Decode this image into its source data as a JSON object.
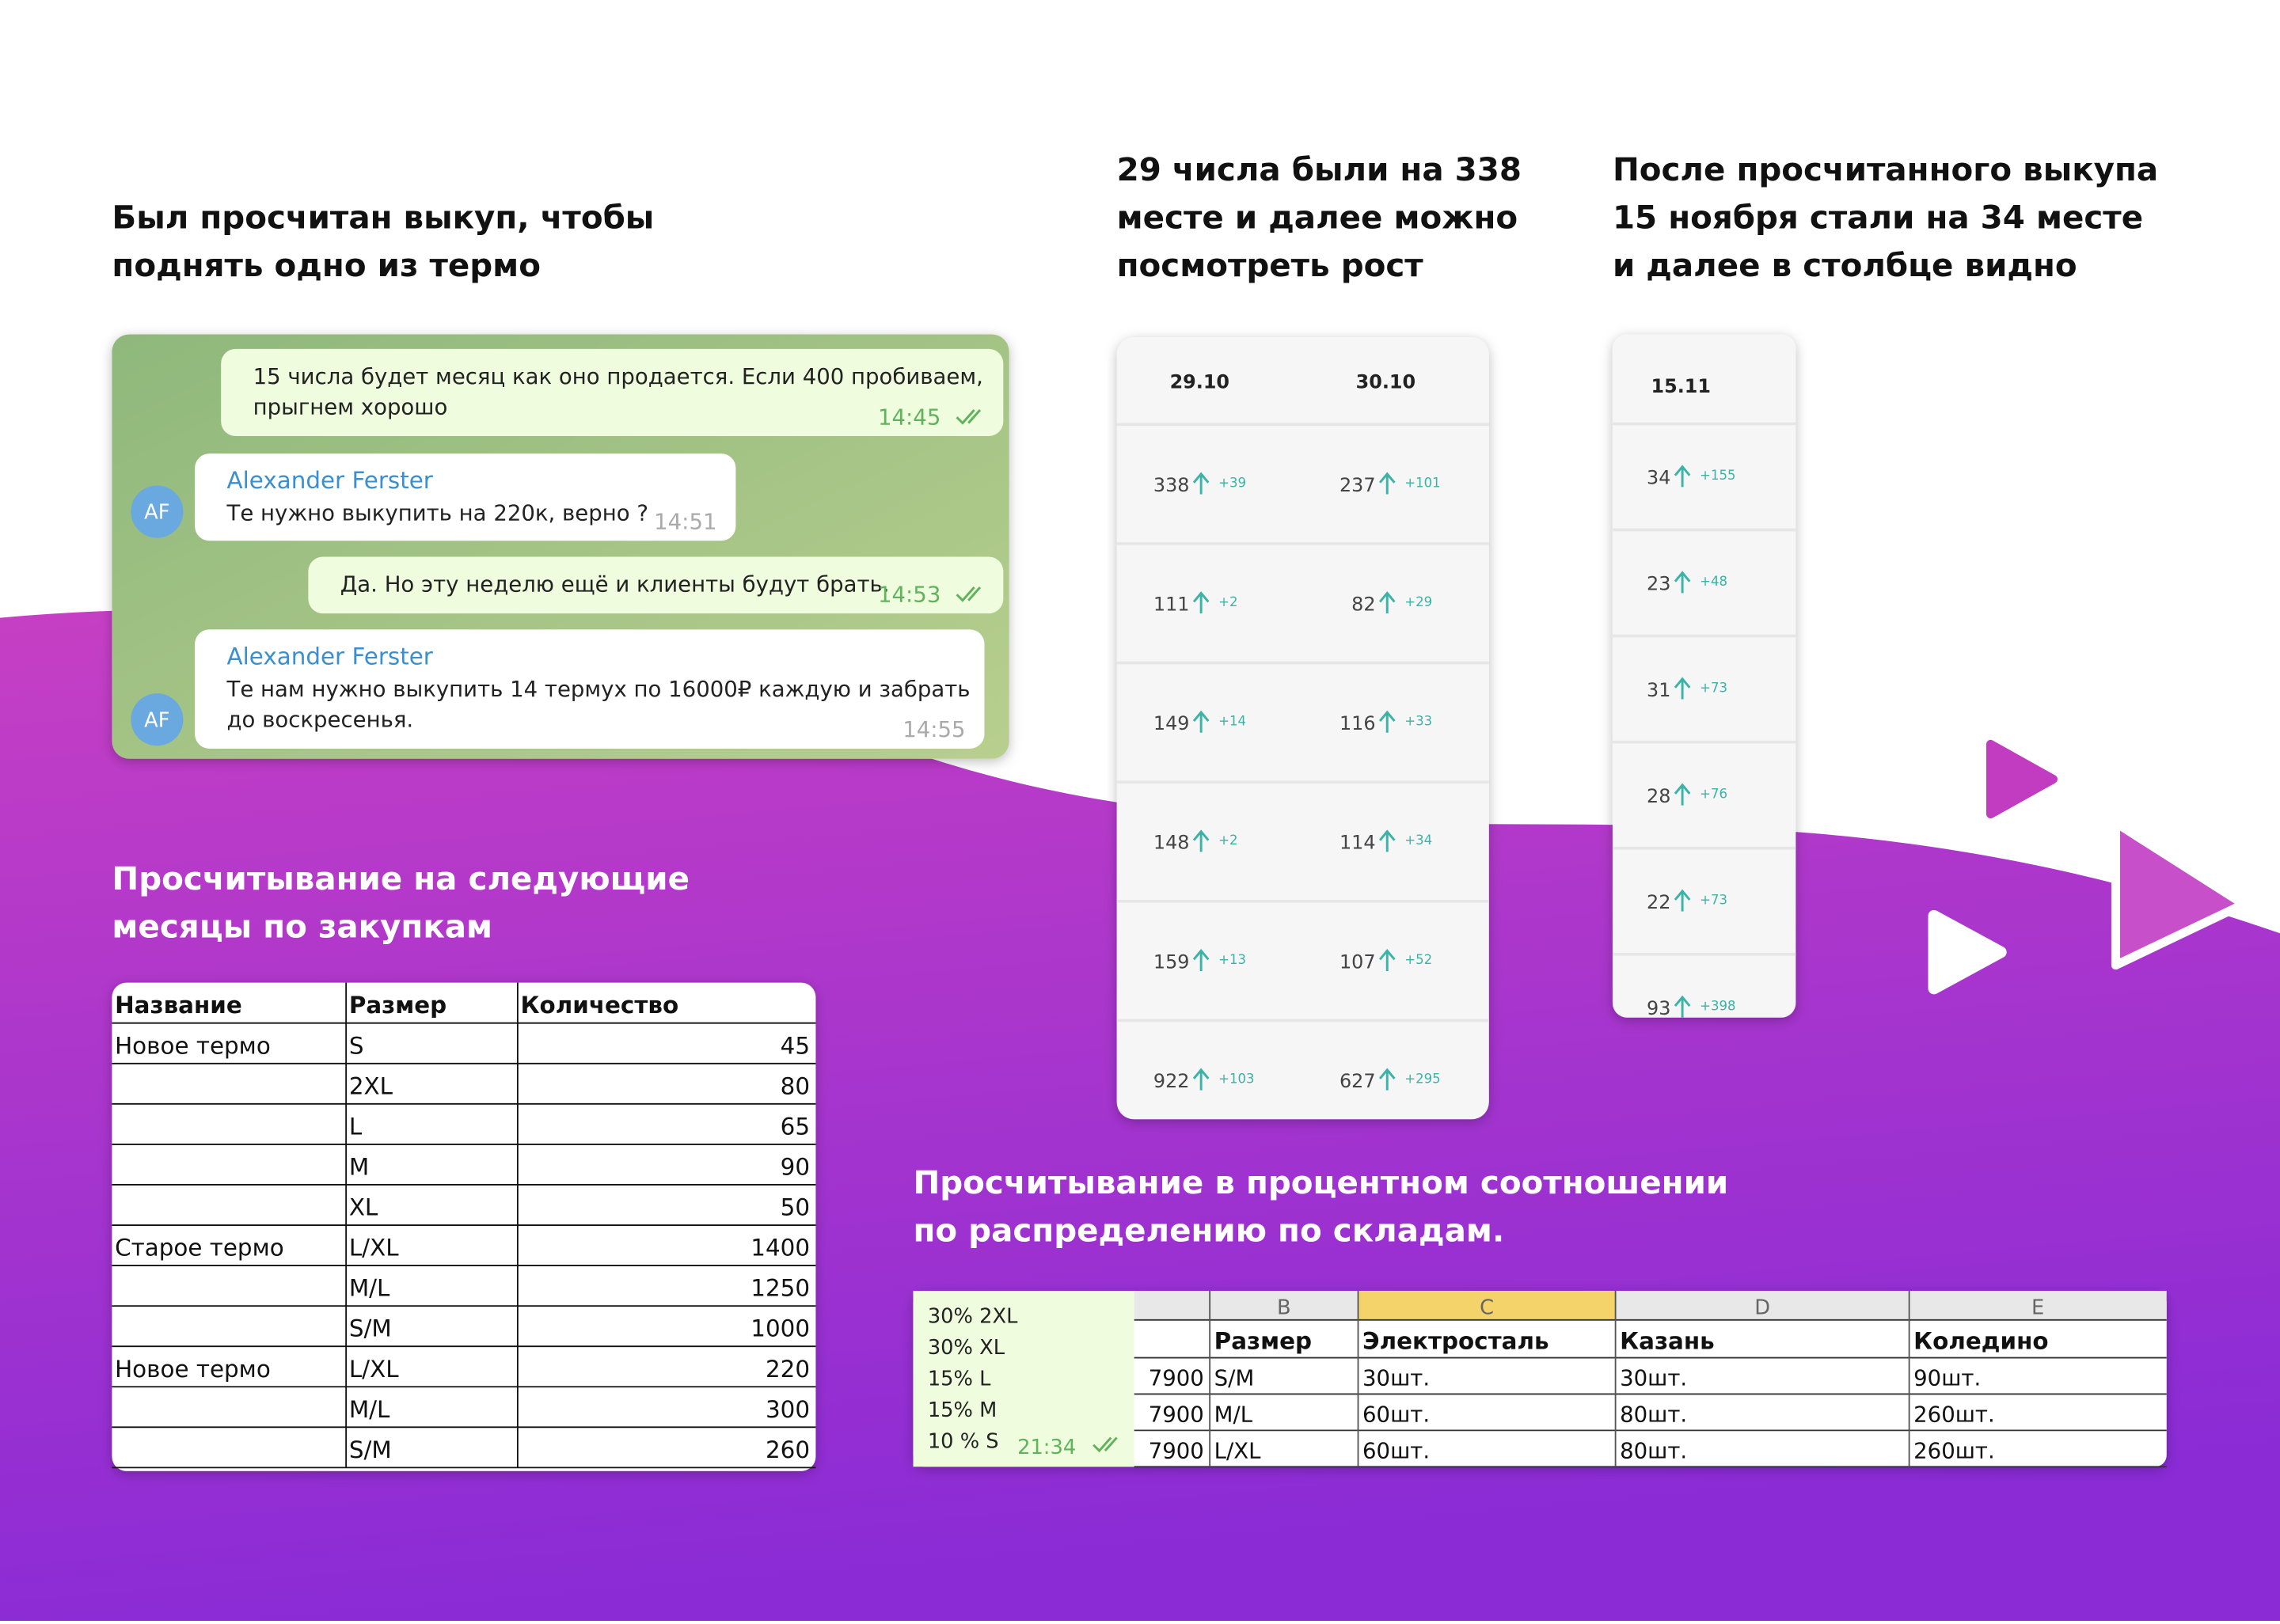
{
  "headings": {
    "buyout": [
      "Был просчитан выкуп, чтобы",
      "поднять одно из термо"
    ],
    "rank_growth": [
      "29 числа были на 338",
      "месте и далее можно",
      "посмотреть рост"
    ],
    "after_buyout": [
      "После просчитанного выкупа",
      "15 ноября стали на 34 месте",
      "и далее в столбце видно"
    ],
    "purchases": [
      "Просчитывание на следующие",
      "месяцы по закупкам"
    ],
    "warehouses": [
      "Просчитывание в процентном соотношении",
      "по распределению по складам."
    ]
  },
  "chat": {
    "messages": [
      {
        "lines": [
          "15 числа будет месяц как оно продается. Если 400 пробиваем,",
          "прыгнем хорошо"
        ],
        "time": "14:45"
      },
      {
        "sender": "Alexander Ferster",
        "avatar": "AF",
        "lines": [
          "Те нужно выкупить на 220к, верно ?"
        ],
        "time": "14:51"
      },
      {
        "lines": [
          "Да. Но эту неделю ещё и клиенты будут брать."
        ],
        "time": "14:53"
      },
      {
        "sender": "Alexander Ferster",
        "avatar": "AF",
        "lines": [
          "Те нам нужно выкупить 14 термух по 16000₽ каждую и забрать",
          "до воскресенья."
        ],
        "time": "14:55"
      }
    ]
  },
  "rank_table_1": {
    "headers": [
      "29.10",
      "30.10"
    ],
    "rows": [
      [
        {
          "rank": 338,
          "delta": "+39"
        },
        {
          "rank": 237,
          "delta": "+101"
        }
      ],
      [
        {
          "rank": 111,
          "delta": "+2"
        },
        {
          "rank": 82,
          "delta": "+29"
        }
      ],
      [
        {
          "rank": 149,
          "delta": "+14"
        },
        {
          "rank": 116,
          "delta": "+33"
        }
      ],
      [
        {
          "rank": 148,
          "delta": "+2"
        },
        {
          "rank": 114,
          "delta": "+34"
        }
      ],
      [
        {
          "rank": 159,
          "delta": "+13"
        },
        {
          "rank": 107,
          "delta": "+52"
        }
      ],
      [
        {
          "rank": 922,
          "delta": "+103"
        },
        {
          "rank": 627,
          "delta": "+295"
        }
      ]
    ]
  },
  "rank_table_2": {
    "headers": [
      "15.11"
    ],
    "rows": [
      [
        {
          "rank": 34,
          "delta": "+155"
        }
      ],
      [
        {
          "rank": 23,
          "delta": "+48"
        }
      ],
      [
        {
          "rank": 31,
          "delta": "+73"
        }
      ],
      [
        {
          "rank": 28,
          "delta": "+76"
        }
      ],
      [
        {
          "rank": 22,
          "delta": "+73"
        }
      ],
      [
        {
          "rank": 93,
          "delta": "+398"
        }
      ]
    ]
  },
  "purchase_table": {
    "headers": [
      "Название",
      "Размер",
      "Количество"
    ],
    "rows": [
      [
        "Новое термо",
        "S",
        45
      ],
      [
        null,
        "2XL",
        80
      ],
      [
        null,
        "L",
        65
      ],
      [
        null,
        "M",
        90
      ],
      [
        null,
        "XL",
        50
      ],
      [
        "Старое термо",
        "L/XL",
        1400
      ],
      [
        null,
        "M/L",
        1250
      ],
      [
        null,
        "S/M",
        1000
      ],
      [
        "Новое термо",
        "L/XL",
        220
      ],
      [
        null,
        "M/L",
        300
      ],
      [
        null,
        "S/M",
        260
      ]
    ]
  },
  "warehouse": {
    "message": {
      "lines": [
        "30% 2XL",
        "30% XL",
        "15% L",
        "15% M",
        "10 % S"
      ],
      "time": "21:34"
    },
    "column_letters": [
      "B",
      "C",
      "D",
      "E"
    ],
    "headers": [
      "Размер",
      "Электросталь",
      "Казань",
      "Коледино"
    ],
    "rows": [
      [
        7900,
        "S/M",
        "30шт.",
        "30шт.",
        "90шт."
      ],
      [
        7900,
        "M/L",
        "60шт.",
        "80шт.",
        "260шт."
      ],
      [
        7900,
        "L/XL",
        "60шт.",
        "80шт.",
        "260шт."
      ]
    ]
  }
}
